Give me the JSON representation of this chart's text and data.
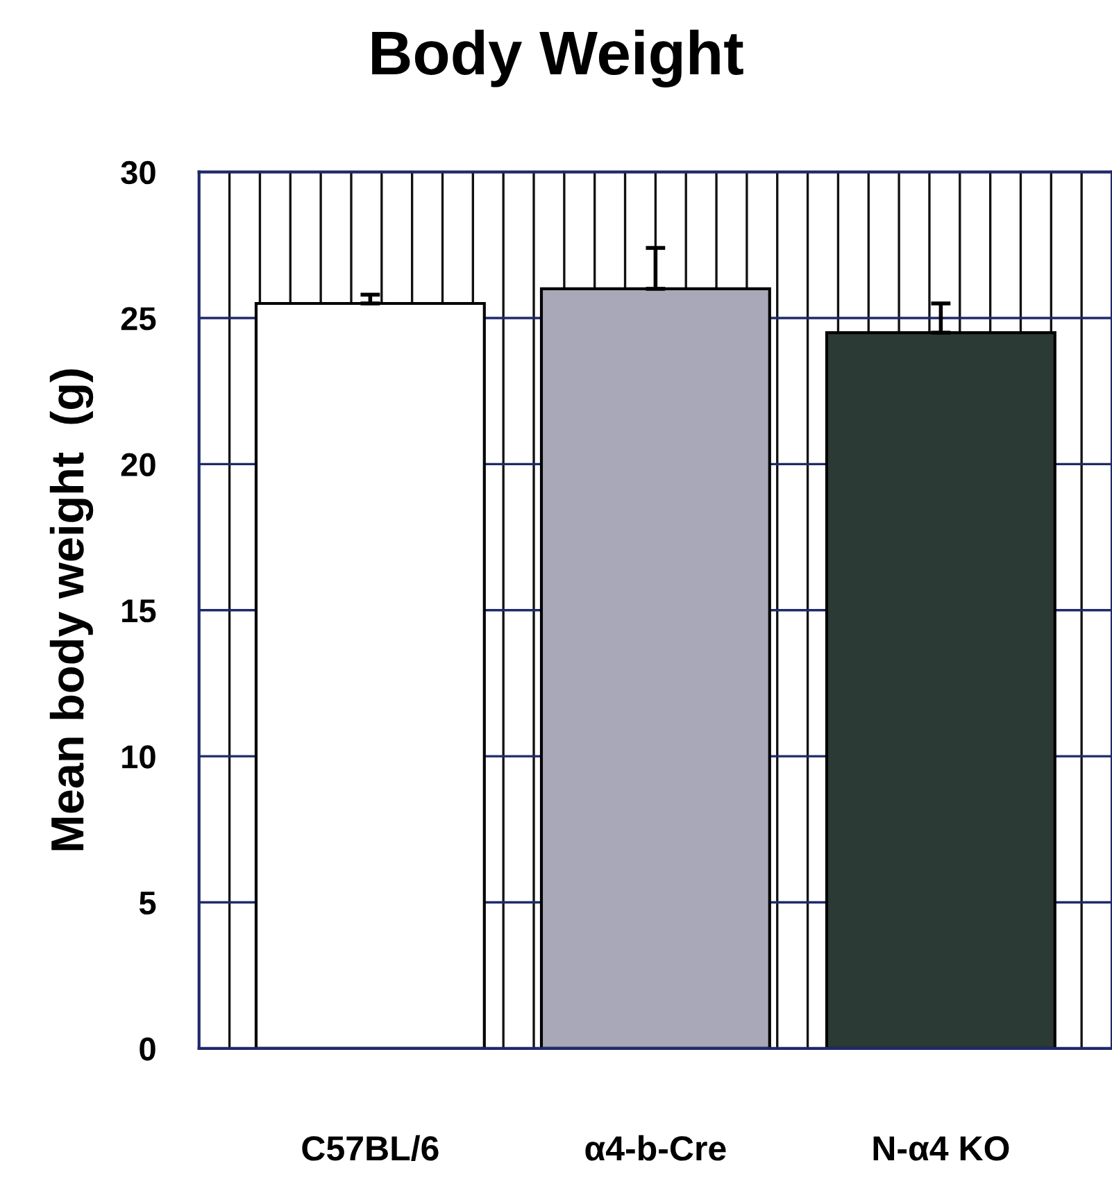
{
  "chart_data": {
    "type": "bar",
    "title": "Body Weight",
    "ylabel": "Mean body weight  (g)",
    "categories": [
      "C57BL/6",
      "α4-b-Cre",
      "N-α4 KO"
    ],
    "values": [
      25.5,
      26.0,
      24.5
    ],
    "errors": [
      0.3,
      1.4,
      1.0
    ],
    "colors": [
      "#ffffff",
      "#a9a8b8",
      "#2c3a36"
    ],
    "ylim": [
      0,
      30
    ],
    "yticks": [
      0,
      5,
      10,
      15,
      20,
      25,
      30
    ],
    "grid": true
  }
}
